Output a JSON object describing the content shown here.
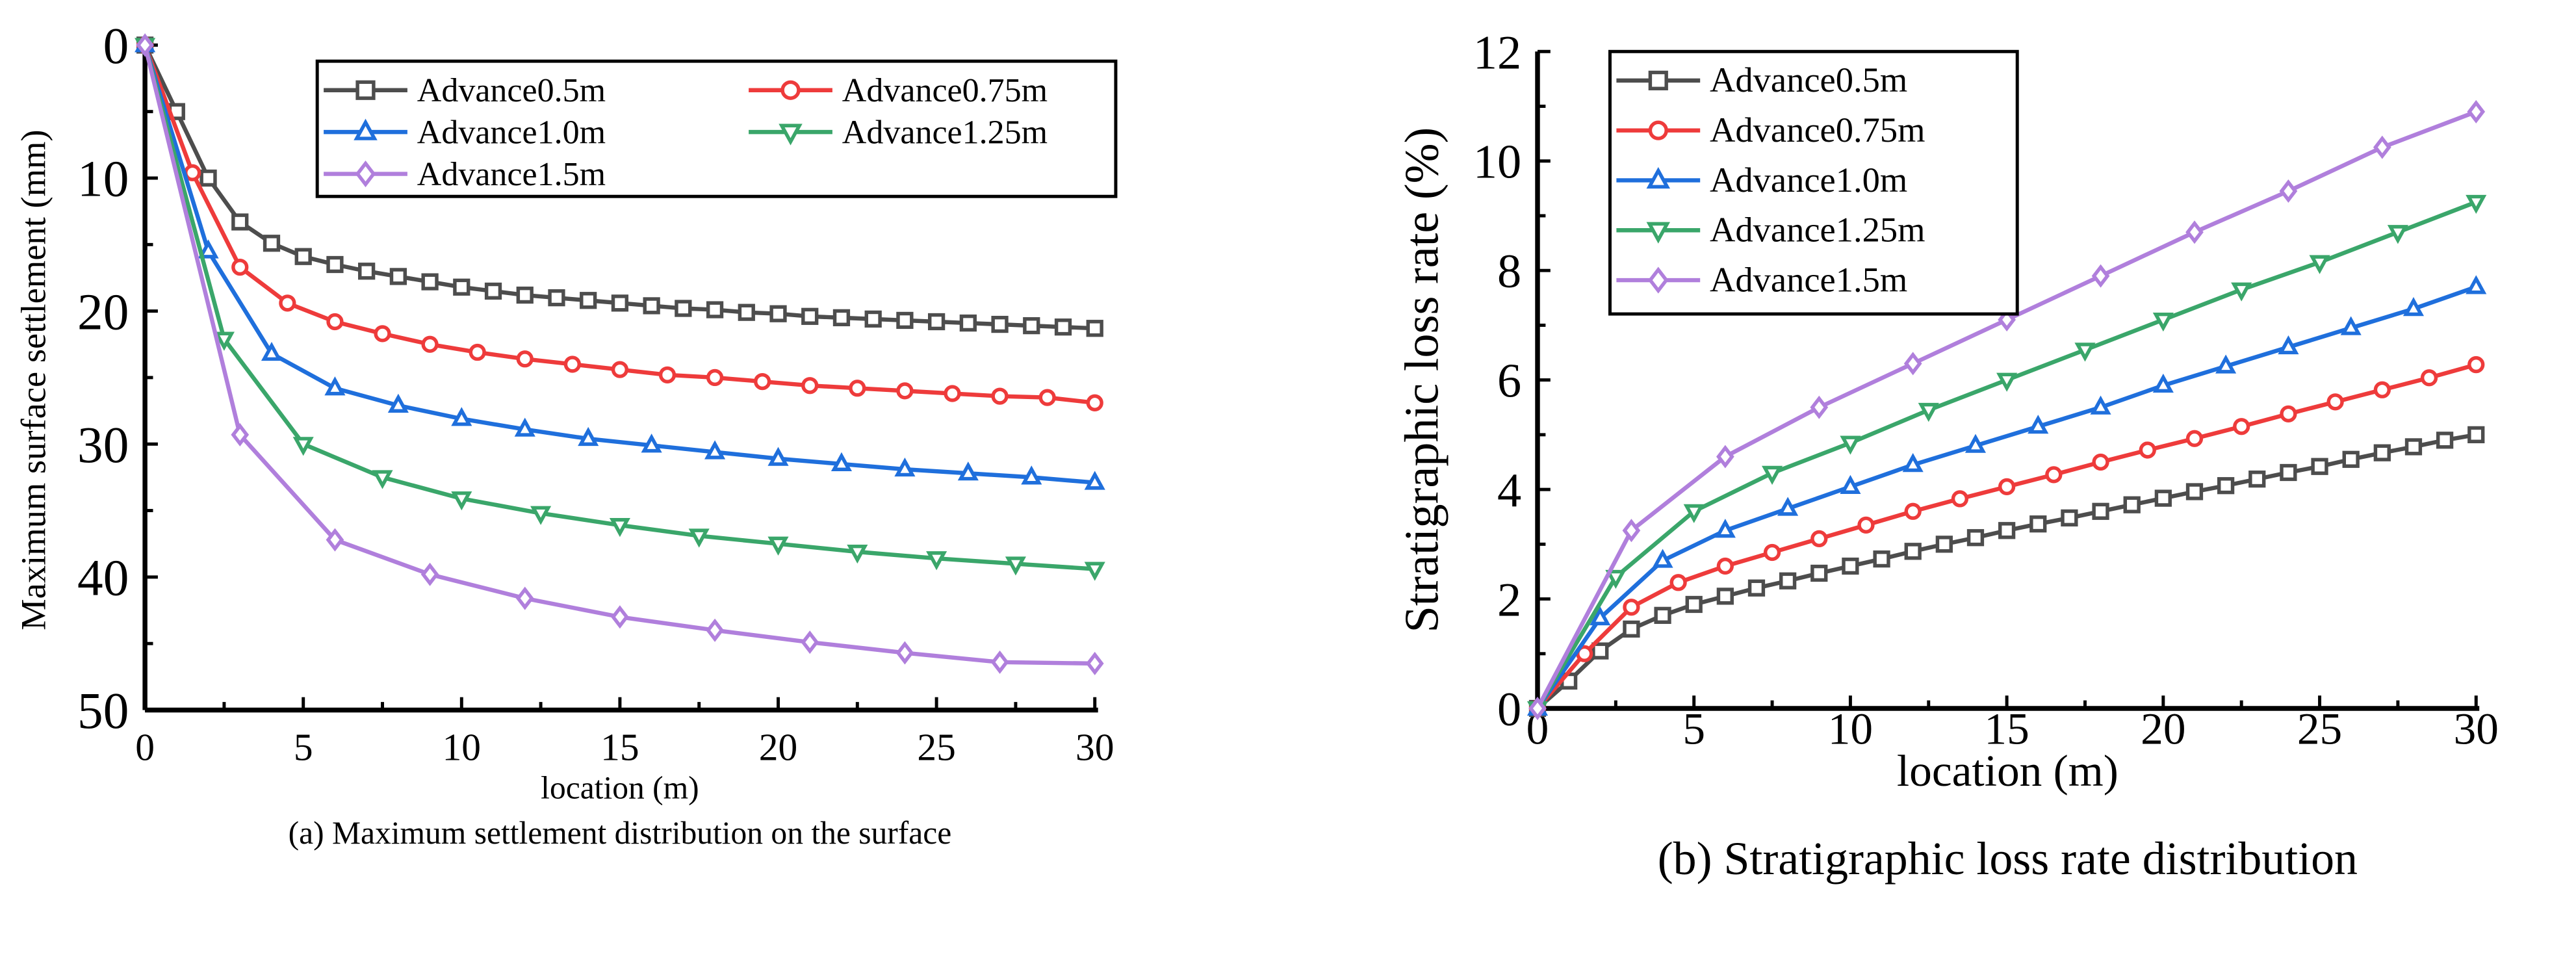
{
  "chart_data": [
    {
      "type": "line",
      "caption": "(a) Maximum settlement distribution on the surface",
      "xlabel": "location (m)",
      "ylabel": "Maximum surface settlement (mm)",
      "xlim": [
        0,
        30
      ],
      "ylim": [
        0,
        50
      ],
      "y_inverted": true,
      "xticks": [
        "0",
        "5",
        "10",
        "15",
        "20",
        "25",
        "30"
      ],
      "yticks": [
        "0",
        "10",
        "20",
        "30",
        "40",
        "50"
      ],
      "legend_placement": "top-right",
      "series": [
        {
          "name": "Advance0.5m",
          "color": "#4d4d4d",
          "marker": "square",
          "x": [
            0,
            1,
            2,
            3,
            4,
            5,
            6,
            7,
            8,
            9,
            10,
            11,
            12,
            13,
            14,
            15,
            16,
            17,
            18,
            19,
            20,
            21,
            22,
            23,
            24,
            25,
            26,
            27,
            28,
            29,
            30
          ],
          "y": [
            0,
            5,
            10,
            13.3,
            14.9,
            15.9,
            16.5,
            17.0,
            17.4,
            17.8,
            18.2,
            18.5,
            18.8,
            19.0,
            19.2,
            19.4,
            19.6,
            19.8,
            19.9,
            20.1,
            20.2,
            20.4,
            20.5,
            20.6,
            20.7,
            20.8,
            20.9,
            21.0,
            21.1,
            21.2,
            21.3
          ]
        },
        {
          "name": "Advance0.75m",
          "color": "#ee3b3b",
          "marker": "circle",
          "x": [
            0,
            1.5,
            3,
            4.5,
            6,
            7.5,
            9,
            10.5,
            12,
            13.5,
            15,
            16.5,
            18,
            19.5,
            21,
            22.5,
            24,
            25.5,
            27,
            28.5,
            30
          ],
          "y": [
            0,
            9.6,
            16.7,
            19.4,
            20.8,
            21.7,
            22.5,
            23.1,
            23.6,
            24.0,
            24.4,
            24.8,
            25.0,
            25.3,
            25.6,
            25.8,
            26.0,
            26.2,
            26.4,
            26.5,
            26.9
          ]
        },
        {
          "name": "Advance1.0m",
          "color": "#1f6fdc",
          "marker": "triangle-up",
          "x": [
            0,
            2,
            4,
            6,
            8,
            10,
            12,
            14,
            16,
            18,
            20,
            22,
            24,
            26,
            28,
            30
          ],
          "y": [
            0,
            15.5,
            23.2,
            25.8,
            27.1,
            28.1,
            28.9,
            29.6,
            30.1,
            30.6,
            31.1,
            31.5,
            31.9,
            32.2,
            32.5,
            32.9
          ]
        },
        {
          "name": "Advance1.25m",
          "color": "#3aa66a",
          "marker": "triangle-down",
          "x": [
            0,
            2.5,
            5,
            7.5,
            10,
            12.5,
            15,
            17.5,
            20,
            22.5,
            25,
            27.5,
            30
          ],
          "y": [
            0,
            22.1,
            30.0,
            32.5,
            34.1,
            35.2,
            36.1,
            36.9,
            37.5,
            38.1,
            38.6,
            39.0,
            39.4
          ]
        },
        {
          "name": "Advance1.5m",
          "color": "#b07fdc",
          "marker": "diamond",
          "x": [
            0,
            3,
            6,
            9,
            12,
            15,
            18,
            21,
            24,
            27,
            30
          ],
          "y": [
            0,
            29.3,
            37.2,
            39.8,
            41.6,
            43.0,
            44.0,
            44.9,
            45.7,
            46.4,
            46.5
          ]
        }
      ]
    },
    {
      "type": "line",
      "caption": "(b) Stratigraphic loss rate distribution",
      "xlabel": "location (m)",
      "ylabel": "Stratigraphic loss rate (%)",
      "xlim": [
        0,
        30
      ],
      "ylim": [
        0,
        12
      ],
      "xticks": [
        "0",
        "5",
        "10",
        "15",
        "20",
        "25",
        "30"
      ],
      "yticks": [
        "0",
        "2",
        "4",
        "6",
        "8",
        "10",
        "12"
      ],
      "legend_placement": "top-left",
      "series": [
        {
          "name": "Advance0.5m",
          "color": "#4d4d4d",
          "marker": "square",
          "x": [
            0,
            1,
            2,
            3,
            4,
            5,
            6,
            7,
            8,
            9,
            10,
            11,
            12,
            13,
            14,
            15,
            16,
            17,
            18,
            19,
            20,
            21,
            22,
            23,
            24,
            25,
            26,
            27,
            28,
            29,
            30
          ],
          "y": [
            0,
            0.5,
            1.05,
            1.45,
            1.7,
            1.9,
            2.05,
            2.2,
            2.33,
            2.47,
            2.6,
            2.73,
            2.87,
            3.0,
            3.12,
            3.25,
            3.37,
            3.48,
            3.6,
            3.72,
            3.84,
            3.96,
            4.07,
            4.19,
            4.31,
            4.42,
            4.55,
            4.67,
            4.78,
            4.9,
            5.0
          ]
        },
        {
          "name": "Advance0.75m",
          "color": "#ee3b3b",
          "marker": "circle",
          "x": [
            0,
            1.5,
            3,
            4.5,
            6,
            7.5,
            9,
            10.5,
            12,
            13.5,
            15,
            16.5,
            18,
            19.5,
            21,
            22.5,
            24,
            25.5,
            27,
            28.5,
            30
          ],
          "y": [
            0,
            1.0,
            1.85,
            2.3,
            2.6,
            2.85,
            3.1,
            3.35,
            3.6,
            3.83,
            4.05,
            4.27,
            4.5,
            4.72,
            4.93,
            5.15,
            5.38,
            5.6,
            5.82,
            6.04,
            6.28
          ]
        },
        {
          "name": "Advance1.0m",
          "color": "#1f6fdc",
          "marker": "triangle-up",
          "x": [
            0,
            2,
            4,
            6,
            8,
            10,
            12,
            14,
            16,
            18,
            20,
            22,
            24,
            26,
            28,
            30
          ],
          "y": [
            0,
            1.65,
            2.7,
            3.25,
            3.65,
            4.05,
            4.45,
            4.8,
            5.15,
            5.5,
            5.9,
            6.25,
            6.6,
            6.95,
            7.3,
            7.7
          ]
        },
        {
          "name": "Advance1.25m",
          "color": "#3aa66a",
          "marker": "triangle-down",
          "x": [
            0,
            2.5,
            5,
            7.5,
            10,
            12.5,
            15,
            17.5,
            20,
            22.5,
            25,
            27.5,
            30
          ],
          "y": [
            0,
            2.4,
            3.6,
            4.3,
            4.85,
            5.45,
            6.0,
            6.55,
            7.1,
            7.65,
            8.15,
            8.7,
            9.25
          ]
        },
        {
          "name": "Advance1.5m",
          "color": "#b07fdc",
          "marker": "diamond",
          "x": [
            0,
            3,
            6,
            9,
            12,
            15,
            18,
            21,
            24,
            27,
            30
          ],
          "y": [
            0,
            3.25,
            4.6,
            5.5,
            6.3,
            7.1,
            7.9,
            8.7,
            9.45,
            10.25,
            10.9
          ]
        }
      ]
    }
  ]
}
